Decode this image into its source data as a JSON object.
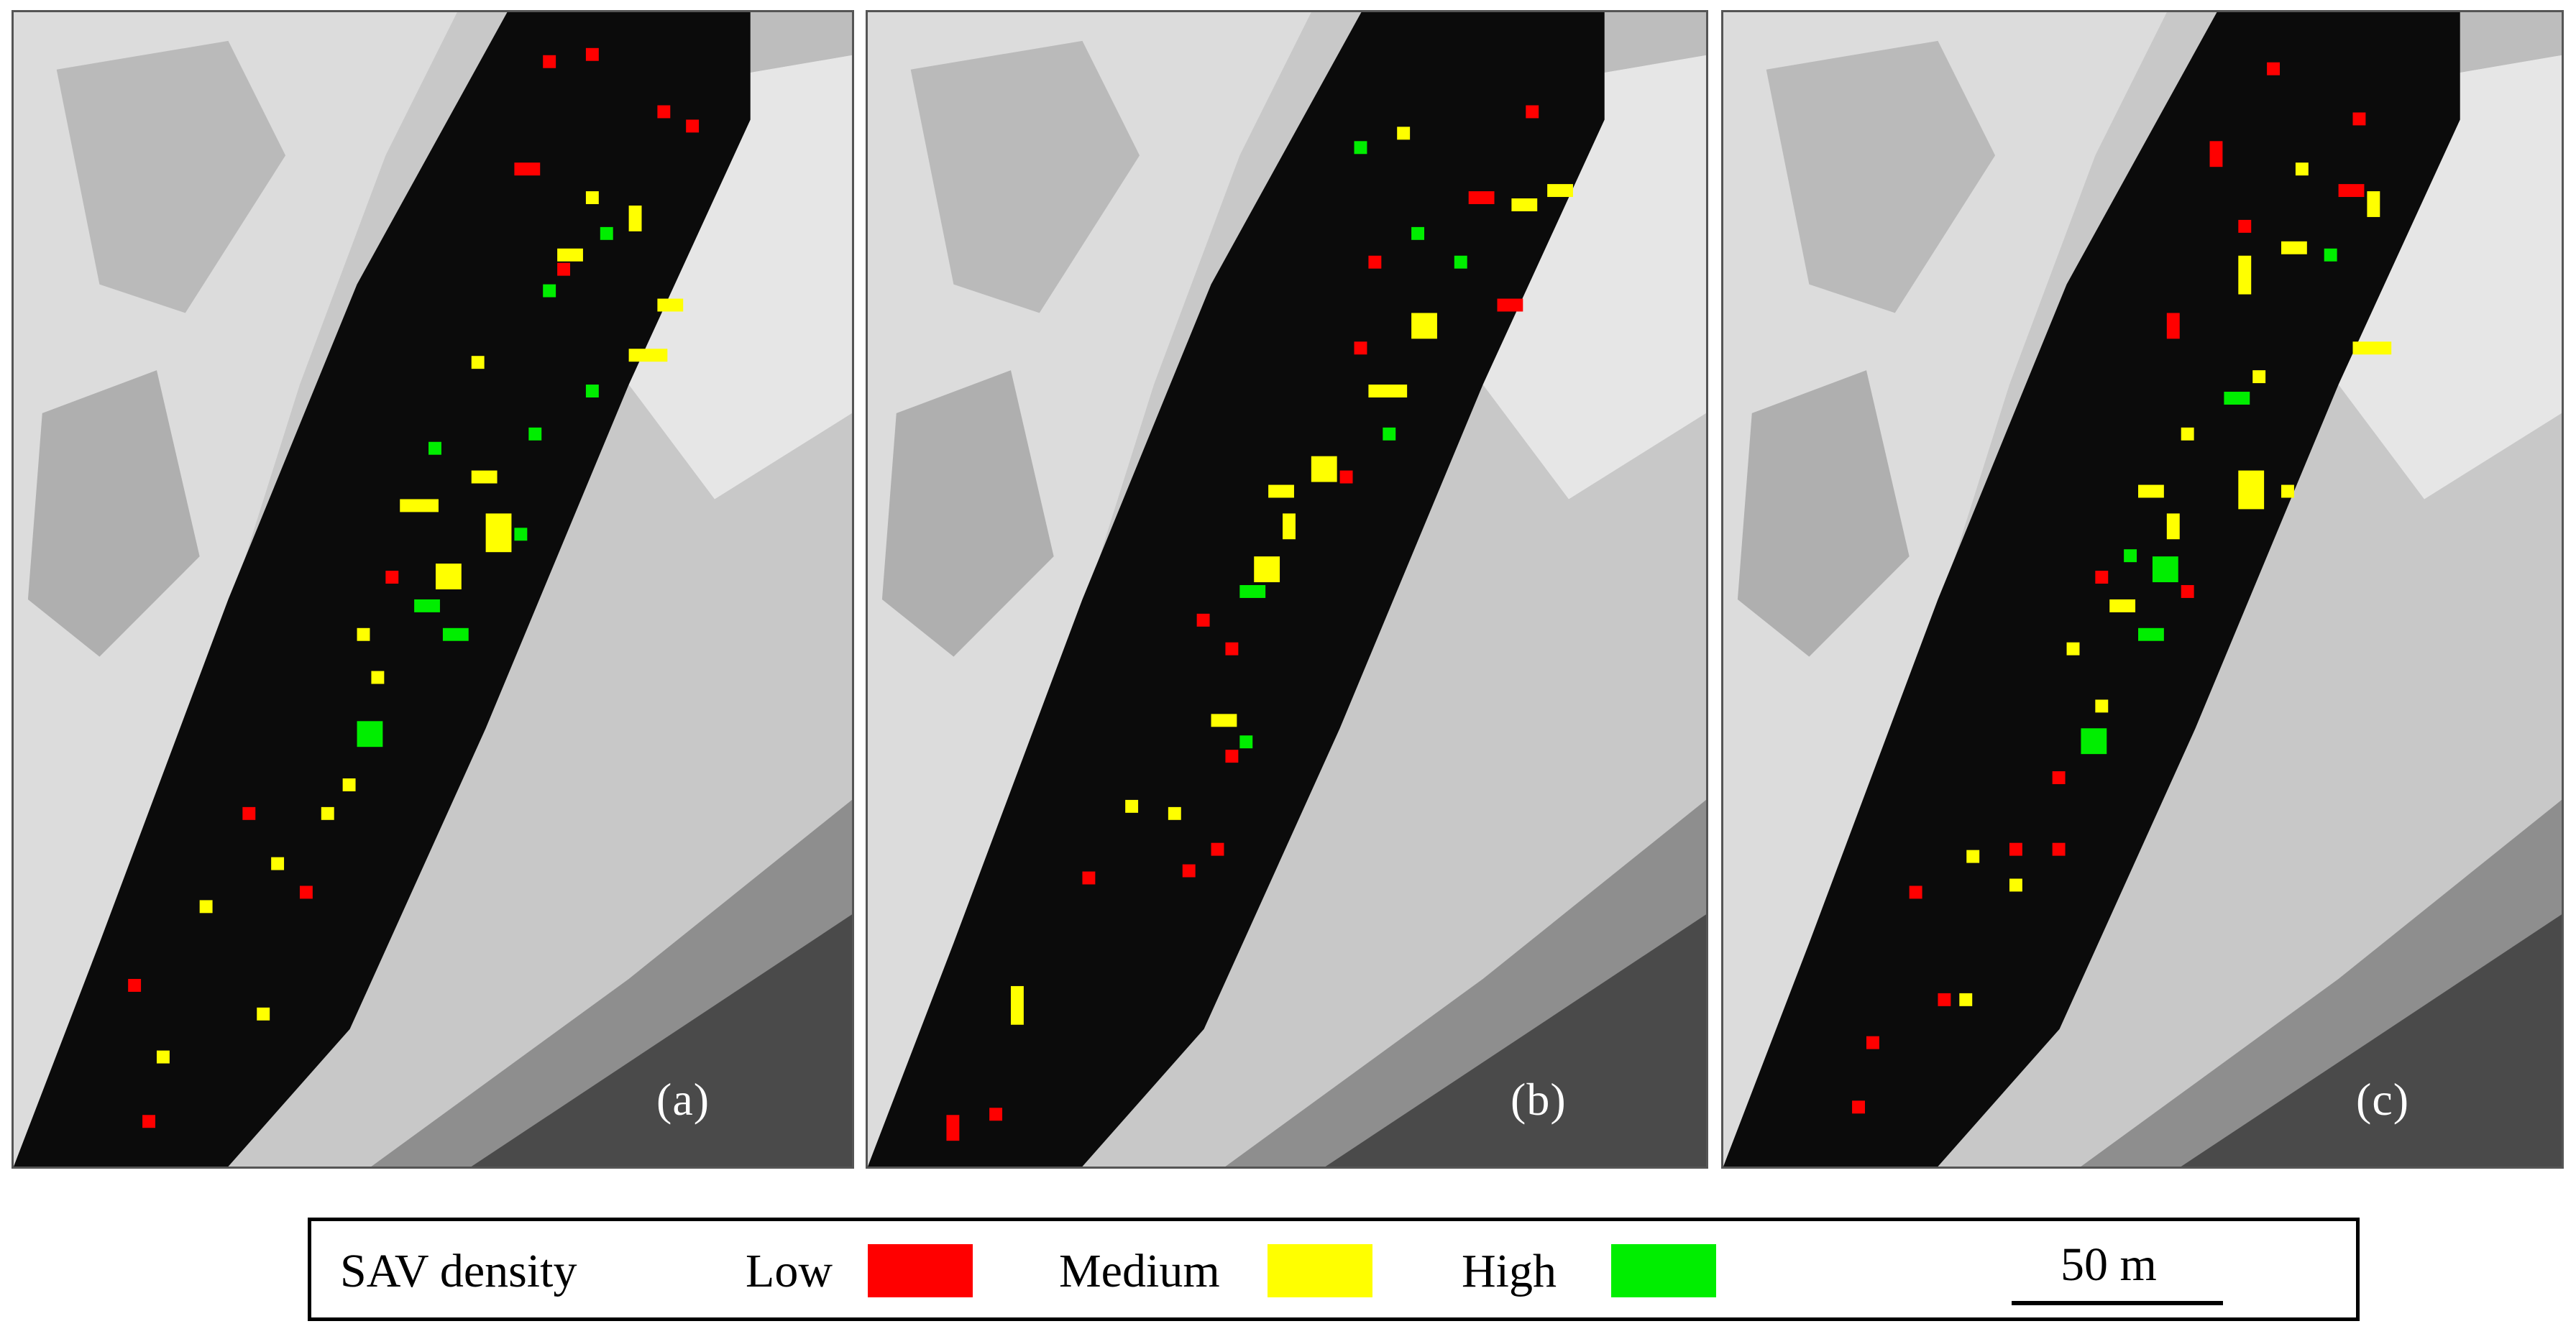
{
  "panels": [
    {
      "label": "(a)"
    },
    {
      "label": "(b)"
    },
    {
      "label": "(c)"
    }
  ],
  "legend": {
    "title": "SAV density",
    "classes": [
      {
        "label": "Low",
        "color": "#ff0000"
      },
      {
        "label": "Medium",
        "color": "#ffff00"
      },
      {
        "label": "High",
        "color": "#00ee00"
      }
    ],
    "scale_label": "50 m"
  }
}
